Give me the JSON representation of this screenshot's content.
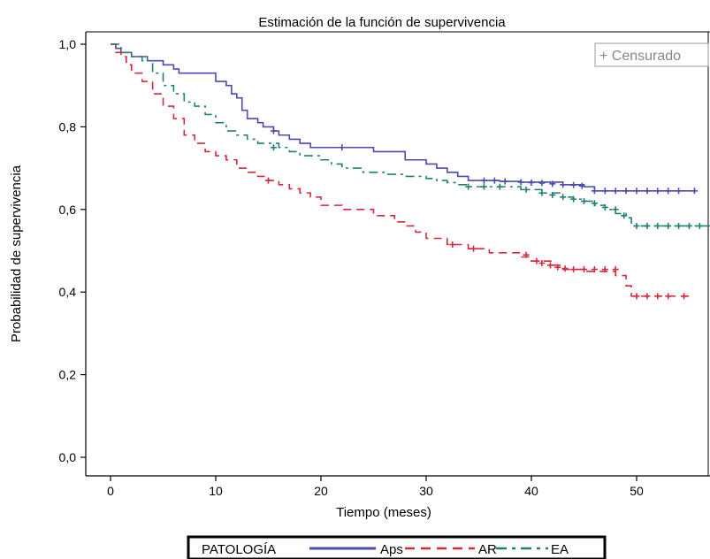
{
  "chart_data": {
    "type": "line",
    "title": "Estimación de la función de supervivencia",
    "xlabel": "Tiempo (meses)",
    "ylabel": "Probabilidad de supervivencia",
    "xlim": [
      -3,
      57
    ],
    "ylim": [
      -0.02,
      1.02
    ],
    "x_ticks": [
      0,
      10,
      20,
      30,
      40,
      50
    ],
    "x_tick_labels": [
      "0",
      "10",
      "20",
      "30",
      "40",
      "50"
    ],
    "y_ticks": [
      0.0,
      0.2,
      0.4,
      0.6,
      0.8,
      1.0
    ],
    "y_tick_labels": [
      "0,0",
      "0,2",
      "0,4",
      "0,6",
      "0,8",
      "1,0"
    ],
    "grid": false,
    "censor_legend": "+ Censurado",
    "legend_title": "PATOLOGÍA",
    "legend_placement": "bottom",
    "series": [
      {
        "name": "Aps",
        "color": "#4b4bb0",
        "dash": "solid",
        "steps": [
          [
            0,
            1.0
          ],
          [
            0.5,
            0.99
          ],
          [
            1,
            0.98
          ],
          [
            2,
            0.97
          ],
          [
            3.5,
            0.96
          ],
          [
            5,
            0.95
          ],
          [
            6,
            0.94
          ],
          [
            6.5,
            0.93
          ],
          [
            10,
            0.91
          ],
          [
            11,
            0.9
          ],
          [
            11.5,
            0.88
          ],
          [
            12,
            0.87
          ],
          [
            12.5,
            0.84
          ],
          [
            13,
            0.82
          ],
          [
            14,
            0.81
          ],
          [
            14.5,
            0.8
          ],
          [
            15.5,
            0.79
          ],
          [
            16,
            0.78
          ],
          [
            17,
            0.77
          ],
          [
            18,
            0.76
          ],
          [
            19,
            0.75
          ],
          [
            25,
            0.74
          ],
          [
            28,
            0.72
          ],
          [
            30,
            0.71
          ],
          [
            31,
            0.7
          ],
          [
            32,
            0.69
          ],
          [
            33,
            0.68
          ],
          [
            34,
            0.67
          ],
          [
            37,
            0.668
          ],
          [
            39,
            0.666
          ],
          [
            43,
            0.66
          ],
          [
            45,
            0.655
          ],
          [
            46,
            0.645
          ],
          [
            55.5,
            0.645
          ]
        ],
        "censored": [
          [
            15.5,
            0.79
          ],
          [
            22,
            0.75
          ],
          [
            35.5,
            0.67
          ],
          [
            36.5,
            0.67
          ],
          [
            37.5,
            0.668
          ],
          [
            39,
            0.666
          ],
          [
            40,
            0.665
          ],
          [
            41,
            0.664
          ],
          [
            42,
            0.662
          ],
          [
            43,
            0.66
          ],
          [
            44,
            0.659
          ],
          [
            44.8,
            0.657
          ],
          [
            46,
            0.645
          ],
          [
            47,
            0.645
          ],
          [
            48,
            0.645
          ],
          [
            49,
            0.645
          ],
          [
            50,
            0.645
          ],
          [
            51,
            0.645
          ],
          [
            52,
            0.645
          ],
          [
            53,
            0.645
          ],
          [
            54,
            0.645
          ],
          [
            55.5,
            0.645
          ]
        ]
      },
      {
        "name": "AR",
        "color": "#d8283c",
        "dash": "dashed",
        "steps": [
          [
            0,
            1.0
          ],
          [
            0.5,
            0.98
          ],
          [
            1,
            0.97
          ],
          [
            1.5,
            0.95
          ],
          [
            2,
            0.93
          ],
          [
            3,
            0.91
          ],
          [
            4,
            0.88
          ],
          [
            5,
            0.85
          ],
          [
            6,
            0.82
          ],
          [
            7,
            0.78
          ],
          [
            8,
            0.76
          ],
          [
            9,
            0.74
          ],
          [
            10,
            0.73
          ],
          [
            11,
            0.72
          ],
          [
            12,
            0.7
          ],
          [
            13,
            0.69
          ],
          [
            14,
            0.68
          ],
          [
            15,
            0.67
          ],
          [
            16,
            0.66
          ],
          [
            17,
            0.65
          ],
          [
            18,
            0.64
          ],
          [
            19,
            0.63
          ],
          [
            20,
            0.61
          ],
          [
            22,
            0.6
          ],
          [
            25,
            0.585
          ],
          [
            27,
            0.57
          ],
          [
            28,
            0.56
          ],
          [
            29,
            0.545
          ],
          [
            30,
            0.53
          ],
          [
            32,
            0.515
          ],
          [
            34,
            0.505
          ],
          [
            36,
            0.495
          ],
          [
            39,
            0.485
          ],
          [
            40,
            0.475
          ],
          [
            42,
            0.465
          ],
          [
            43,
            0.455
          ],
          [
            45,
            0.45
          ],
          [
            48,
            0.44
          ],
          [
            49,
            0.415
          ],
          [
            49.5,
            0.39
          ],
          [
            55,
            0.39
          ]
        ],
        "censored": [
          [
            15,
            0.67
          ],
          [
            32.5,
            0.515
          ],
          [
            34.5,
            0.505
          ],
          [
            39.5,
            0.49
          ],
          [
            40.5,
            0.475
          ],
          [
            41,
            0.47
          ],
          [
            41.8,
            0.465
          ],
          [
            42.5,
            0.46
          ],
          [
            43.2,
            0.457
          ],
          [
            44,
            0.455
          ],
          [
            45,
            0.455
          ],
          [
            46,
            0.455
          ],
          [
            47,
            0.455
          ],
          [
            48,
            0.455
          ],
          [
            50,
            0.39
          ],
          [
            51,
            0.39
          ],
          [
            52,
            0.39
          ],
          [
            53,
            0.39
          ],
          [
            54.5,
            0.39
          ]
        ]
      },
      {
        "name": "EA",
        "color": "#208070",
        "dash": "dashdot",
        "steps": [
          [
            0,
            1.0
          ],
          [
            1,
            0.98
          ],
          [
            2,
            0.97
          ],
          [
            3,
            0.96
          ],
          [
            4,
            0.93
          ],
          [
            5,
            0.9
          ],
          [
            6,
            0.88
          ],
          [
            7,
            0.86
          ],
          [
            8,
            0.85
          ],
          [
            9,
            0.83
          ],
          [
            10,
            0.81
          ],
          [
            11,
            0.79
          ],
          [
            12,
            0.78
          ],
          [
            13,
            0.77
          ],
          [
            14,
            0.76
          ],
          [
            16,
            0.75
          ],
          [
            17,
            0.74
          ],
          [
            18,
            0.73
          ],
          [
            20,
            0.72
          ],
          [
            21,
            0.71
          ],
          [
            22,
            0.7
          ],
          [
            24,
            0.69
          ],
          [
            26,
            0.685
          ],
          [
            28,
            0.68
          ],
          [
            30,
            0.675
          ],
          [
            31,
            0.67
          ],
          [
            32,
            0.665
          ],
          [
            33,
            0.66
          ],
          [
            34,
            0.655
          ],
          [
            39,
            0.648
          ],
          [
            41,
            0.64
          ],
          [
            43,
            0.63
          ],
          [
            44,
            0.625
          ],
          [
            45,
            0.62
          ],
          [
            46,
            0.61
          ],
          [
            47,
            0.6
          ],
          [
            48,
            0.59
          ],
          [
            49,
            0.58
          ],
          [
            49.5,
            0.56
          ],
          [
            57,
            0.56
          ]
        ],
        "censored": [
          [
            15.5,
            0.75
          ],
          [
            34,
            0.655
          ],
          [
            35.5,
            0.655
          ],
          [
            37,
            0.655
          ],
          [
            39.5,
            0.648
          ],
          [
            41,
            0.64
          ],
          [
            42,
            0.635
          ],
          [
            43,
            0.63
          ],
          [
            44,
            0.625
          ],
          [
            45,
            0.62
          ],
          [
            46,
            0.615
          ],
          [
            47,
            0.605
          ],
          [
            48,
            0.6
          ],
          [
            48.8,
            0.585
          ],
          [
            50,
            0.56
          ],
          [
            51,
            0.56
          ],
          [
            52,
            0.56
          ],
          [
            53,
            0.56
          ],
          [
            54,
            0.56
          ],
          [
            55,
            0.56
          ],
          [
            56,
            0.56
          ]
        ]
      }
    ]
  }
}
